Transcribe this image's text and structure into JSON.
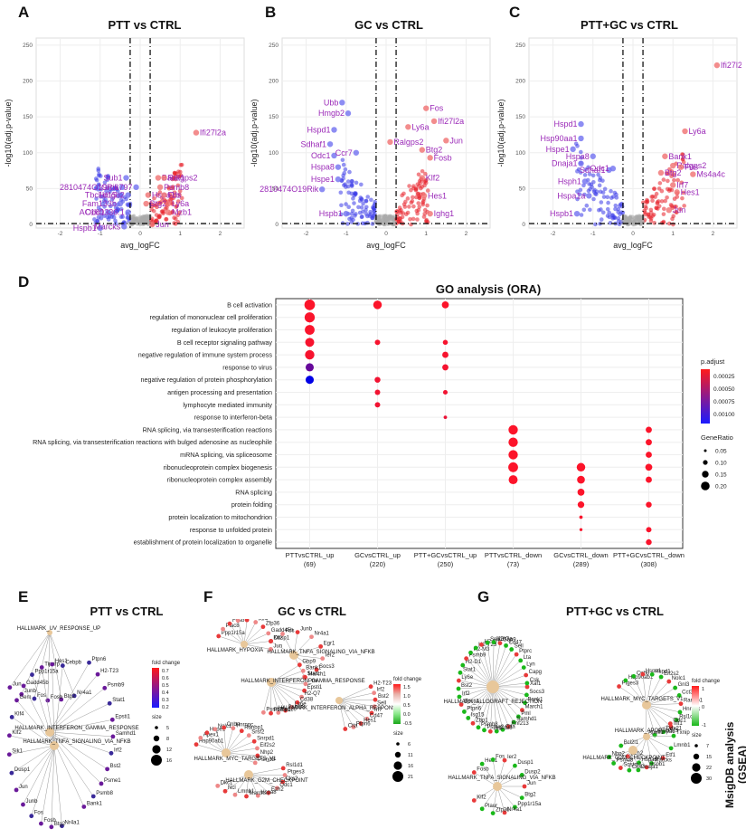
{
  "panels": {
    "A": {
      "letter": "A",
      "title": "PTT vs CTRL"
    },
    "B": {
      "letter": "B",
      "title": "GC vs CTRL"
    },
    "C": {
      "letter": "C",
      "title": "PTT+GC vs CTRL"
    },
    "D": {
      "letter": "D",
      "title": "GO analysis (ORA)"
    },
    "E": {
      "letter": "E",
      "title": "PTT vs CTRL"
    },
    "F": {
      "letter": "F",
      "title": "GC vs CTRL"
    },
    "G": {
      "letter": "G",
      "title": "PTT+GC vs CTRL"
    }
  },
  "volcano_axes": {
    "xlabel": "avg_logFC",
    "ylabel": "-log10(adj.p-value)",
    "yticks": [
      "0",
      "50",
      "100",
      "150",
      "200",
      "250"
    ],
    "xticks": [
      "-2",
      "-1",
      "0",
      "1",
      "2"
    ]
  },
  "chart_data": [
    {
      "type": "scatter",
      "id": "volcano-A",
      "title": "PTT vs CTRL",
      "xlabel": "avg_logFC",
      "ylabel": "-log10(adj.p-value)",
      "xlim": [
        -2.6,
        2.6
      ],
      "ylim": [
        -5,
        260
      ],
      "thresholds": {
        "x": [
          -0.25,
          0.25
        ],
        "y": 1.3
      },
      "labels": [
        {
          "gene": "Ifi27l2a",
          "x": 1.4,
          "y": 128,
          "dir": "up"
        },
        {
          "gene": "Sub1",
          "x": -0.35,
          "y": 65,
          "dir": "down"
        },
        {
          "gene": "Bank1",
          "x": 0.45,
          "y": 65,
          "dir": "up"
        },
        {
          "gene": "Ralgps2",
          "x": 0.6,
          "y": 65,
          "dir": "up"
        },
        {
          "gene": "2810474O19Rik",
          "x": -0.45,
          "y": 52,
          "dir": "down"
        },
        {
          "gene": "Gm6797",
          "x": -0.1,
          "y": 52,
          "dir": "down"
        },
        {
          "gene": "Psmb8",
          "x": 0.5,
          "y": 52,
          "dir": "up"
        },
        {
          "gene": "Tbc1d15",
          "x": -0.5,
          "y": 41,
          "dir": "down"
        },
        {
          "gene": "Hmgb2",
          "x": -0.3,
          "y": 41,
          "dir": "down"
        },
        {
          "gene": "Hspa1b",
          "x": 0.2,
          "y": 41,
          "dir": "up"
        },
        {
          "gene": "Fos",
          "x": 0.6,
          "y": 41,
          "dir": "up"
        },
        {
          "gene": "Fam133b",
          "x": -0.5,
          "y": 29,
          "dir": "down"
        },
        {
          "gene": "Btg2",
          "x": 0.15,
          "y": 29,
          "dir": "up"
        },
        {
          "gene": "Ly6a",
          "x": 0.7,
          "y": 29,
          "dir": "up"
        },
        {
          "gene": "Odc1",
          "x": -0.8,
          "y": 17,
          "dir": "down"
        },
        {
          "gene": "AC160336.1",
          "x": -0.3,
          "y": 17,
          "dir": "down"
        },
        {
          "gene": "Mzb1",
          "x": 0.7,
          "y": 17,
          "dir": "up"
        },
        {
          "gene": "Hspb1",
          "x": -1.0,
          "y": -5,
          "dir": "down"
        },
        {
          "gene": "Marcks",
          "x": -0.4,
          "y": -3,
          "dir": "down"
        },
        {
          "gene": "Jun",
          "x": 0.3,
          "y": 0,
          "dir": "up"
        }
      ]
    },
    {
      "type": "scatter",
      "id": "volcano-B",
      "title": "GC vs CTRL",
      "xlabel": "avg_logFC",
      "ylabel": "-log10(adj.p-value)",
      "xlim": [
        -2.6,
        2.6
      ],
      "ylim": [
        -5,
        260
      ],
      "thresholds": {
        "x": [
          -0.25,
          0.25
        ],
        "y": 1.3
      },
      "labels": [
        {
          "gene": "Fos",
          "x": 1.0,
          "y": 162,
          "dir": "up"
        },
        {
          "gene": "Ubb",
          "x": -1.1,
          "y": 170,
          "dir": "down"
        },
        {
          "gene": "Hmgb2",
          "x": -0.95,
          "y": 155,
          "dir": "down"
        },
        {
          "gene": "Ifi27l2a",
          "x": 1.2,
          "y": 144,
          "dir": "up"
        },
        {
          "gene": "Ly6a",
          "x": 0.55,
          "y": 136,
          "dir": "up"
        },
        {
          "gene": "Hspd1",
          "x": -1.3,
          "y": 132,
          "dir": "down"
        },
        {
          "gene": "Jun",
          "x": 1.5,
          "y": 117,
          "dir": "up"
        },
        {
          "gene": "Ralgps2",
          "x": 0.1,
          "y": 115,
          "dir": "up"
        },
        {
          "gene": "Sdhaf1",
          "x": -1.4,
          "y": 112,
          "dir": "down"
        },
        {
          "gene": "Btg2",
          "x": 0.9,
          "y": 104,
          "dir": "up"
        },
        {
          "gene": "Odc1",
          "x": -1.3,
          "y": 96,
          "dir": "down"
        },
        {
          "gene": "Ccr7",
          "x": -0.75,
          "y": 100,
          "dir": "down"
        },
        {
          "gene": "Fosb",
          "x": 1.1,
          "y": 93,
          "dir": "up"
        },
        {
          "gene": "Hspa8",
          "x": -1.2,
          "y": 80,
          "dir": "down"
        },
        {
          "gene": "Klf2",
          "x": 0.9,
          "y": 65,
          "dir": "up"
        },
        {
          "gene": "Hspe1",
          "x": -1.2,
          "y": 63,
          "dir": "down"
        },
        {
          "gene": "2810474O19Rik",
          "x": -1.6,
          "y": 49,
          "dir": "down"
        },
        {
          "gene": "Hes1",
          "x": 0.95,
          "y": 40,
          "dir": "up"
        },
        {
          "gene": "Ighg1",
          "x": 1.1,
          "y": 15,
          "dir": "up"
        },
        {
          "gene": "Hspb1",
          "x": -1.0,
          "y": 15,
          "dir": "down"
        }
      ]
    },
    {
      "type": "scatter",
      "id": "volcano-C",
      "title": "PTT+GC vs CTRL",
      "xlabel": "avg_logFC",
      "ylabel": "-log10(adj.p-value)",
      "xlim": [
        -2.6,
        2.6
      ],
      "ylim": [
        -5,
        260
      ],
      "thresholds": {
        "x": [
          -0.25,
          0.25
        ],
        "y": 1.3
      },
      "labels": [
        {
          "gene": "Ifi27l2a",
          "x": 2.1,
          "y": 222,
          "dir": "up"
        },
        {
          "gene": "Hspd1",
          "x": -1.3,
          "y": 140,
          "dir": "down"
        },
        {
          "gene": "Ly6a",
          "x": 1.3,
          "y": 130,
          "dir": "up"
        },
        {
          "gene": "Hsp90aa1",
          "x": -1.3,
          "y": 120,
          "dir": "down"
        },
        {
          "gene": "Hspe1",
          "x": -1.5,
          "y": 105,
          "dir": "down"
        },
        {
          "gene": "Hspa8",
          "x": -1.0,
          "y": 95,
          "dir": "down"
        },
        {
          "gene": "Bank1",
          "x": 0.8,
          "y": 95,
          "dir": "up"
        },
        {
          "gene": "Dnaja1",
          "x": -1.3,
          "y": 85,
          "dir": "down"
        },
        {
          "gene": "Ralgps2",
          "x": 1.0,
          "y": 82,
          "dir": "up"
        },
        {
          "gene": "Sdhaf1",
          "x": -0.6,
          "y": 76,
          "dir": "down"
        },
        {
          "gene": "Odc1",
          "x": -0.5,
          "y": 78,
          "dir": "down"
        },
        {
          "gene": "Fos",
          "x": 1.2,
          "y": 80,
          "dir": "up"
        },
        {
          "gene": "Btg2",
          "x": 0.7,
          "y": 72,
          "dir": "up"
        },
        {
          "gene": "Ms4a4c",
          "x": 1.5,
          "y": 70,
          "dir": "up"
        },
        {
          "gene": "Hsph1",
          "x": -1.2,
          "y": 60,
          "dir": "down"
        },
        {
          "gene": "Irf7",
          "x": 1.0,
          "y": 55,
          "dir": "up"
        },
        {
          "gene": "Hspa1a",
          "x": -1.1,
          "y": 40,
          "dir": "down"
        },
        {
          "gene": "Hes1",
          "x": 1.1,
          "y": 45,
          "dir": "up"
        },
        {
          "gene": "Jun",
          "x": 0.9,
          "y": 20,
          "dir": "up"
        },
        {
          "gene": "Hspb1",
          "x": -1.4,
          "y": 15,
          "dir": "down"
        }
      ]
    },
    {
      "type": "dotplot",
      "id": "go-ora",
      "title": "GO analysis (ORA)",
      "terms": [
        "B cell activation",
        "regulation of mononuclear cell proliferation",
        "regulation of leukocyte proliferation",
        "B cell receptor signaling pathway",
        "negative regulation of immune system process",
        "response to virus",
        "negative regulation of protein phosphorylation",
        "antigen processing and presentation",
        "lymphocyte mediated immunity",
        "response to interferon-beta",
        "RNA splicing, via transesterification reactions",
        "RNA splicing, via transesterification reactions with bulged adenosine as nucleophile",
        "mRNA splicing, via spliceosome",
        "ribonucleoprotein complex biogenesis",
        "ribonucleoprotein complex assembly",
        "RNA splicing",
        "protein folding",
        "protein localization to mitochondrion",
        "response to unfolded protein",
        "establishment of protein localization to organelle"
      ],
      "groups": [
        {
          "name": "PTTvsCTRL_up",
          "n": "(69)"
        },
        {
          "name": "GCvsCTRL_up",
          "n": "(220)"
        },
        {
          "name": "PTT+GCvsCTRL_up",
          "n": "(250)"
        },
        {
          "name": "PTTvsCTRL_down",
          "n": "(73)"
        },
        {
          "name": "GCvsCTRL_down",
          "n": "(289)"
        },
        {
          "name": "PTT+GCvsCTRL_down",
          "n": "(308)"
        }
      ],
      "points": [
        {
          "term": 0,
          "group": 0,
          "ratio": 0.22,
          "padj": 1e-05
        },
        {
          "term": 1,
          "group": 0,
          "ratio": 0.21,
          "padj": 2e-05
        },
        {
          "term": 2,
          "group": 0,
          "ratio": 0.2,
          "padj": 2e-05
        },
        {
          "term": 3,
          "group": 0,
          "ratio": 0.18,
          "padj": 3e-05
        },
        {
          "term": 4,
          "group": 0,
          "ratio": 0.19,
          "padj": 3e-05
        },
        {
          "term": 5,
          "group": 0,
          "ratio": 0.16,
          "padj": 0.0006
        },
        {
          "term": 6,
          "group": 0,
          "ratio": 0.16,
          "padj": 0.001
        },
        {
          "term": 0,
          "group": 1,
          "ratio": 0.17,
          "padj": 1e-05
        },
        {
          "term": 3,
          "group": 1,
          "ratio": 0.09,
          "padj": 3e-05
        },
        {
          "term": 6,
          "group": 1,
          "ratio": 0.1,
          "padj": 5e-05
        },
        {
          "term": 7,
          "group": 1,
          "ratio": 0.09,
          "padj": 5e-05
        },
        {
          "term": 8,
          "group": 1,
          "ratio": 0.09,
          "padj": 5e-05
        },
        {
          "term": 0,
          "group": 2,
          "ratio": 0.13,
          "padj": 1e-05
        },
        {
          "term": 3,
          "group": 2,
          "ratio": 0.08,
          "padj": 3e-05
        },
        {
          "term": 4,
          "group": 2,
          "ratio": 0.11,
          "padj": 3e-05
        },
        {
          "term": 5,
          "group": 2,
          "ratio": 0.11,
          "padj": 4e-05
        },
        {
          "term": 7,
          "group": 2,
          "ratio": 0.07,
          "padj": 5e-05
        },
        {
          "term": 9,
          "group": 2,
          "ratio": 0.04,
          "padj": 8e-05
        },
        {
          "term": 10,
          "group": 3,
          "ratio": 0.19,
          "padj": 1e-05
        },
        {
          "term": 11,
          "group": 3,
          "ratio": 0.19,
          "padj": 1e-05
        },
        {
          "term": 12,
          "group": 3,
          "ratio": 0.19,
          "padj": 1e-05
        },
        {
          "term": 13,
          "group": 3,
          "ratio": 0.2,
          "padj": 1e-05
        },
        {
          "term": 14,
          "group": 3,
          "ratio": 0.18,
          "padj": 1e-05
        },
        {
          "term": 13,
          "group": 4,
          "ratio": 0.17,
          "padj": 1e-05
        },
        {
          "term": 14,
          "group": 4,
          "ratio": 0.15,
          "padj": 1e-05
        },
        {
          "term": 15,
          "group": 4,
          "ratio": 0.13,
          "padj": 1e-05
        },
        {
          "term": 16,
          "group": 4,
          "ratio": 0.12,
          "padj": 1e-05
        },
        {
          "term": 17,
          "group": 4,
          "ratio": 0.04,
          "padj": 2e-05
        },
        {
          "term": 18,
          "group": 4,
          "ratio": 0.03,
          "padj": 2e-05
        },
        {
          "term": 10,
          "group": 5,
          "ratio": 0.11,
          "padj": 1e-05
        },
        {
          "term": 11,
          "group": 5,
          "ratio": 0.11,
          "padj": 1e-05
        },
        {
          "term": 12,
          "group": 5,
          "ratio": 0.11,
          "padj": 1e-05
        },
        {
          "term": 13,
          "group": 5,
          "ratio": 0.13,
          "padj": 1e-05
        },
        {
          "term": 14,
          "group": 5,
          "ratio": 0.11,
          "padj": 1e-05
        },
        {
          "term": 16,
          "group": 5,
          "ratio": 0.1,
          "padj": 1e-05
        },
        {
          "term": 18,
          "group": 5,
          "ratio": 0.09,
          "padj": 2e-05
        },
        {
          "term": 19,
          "group": 5,
          "ratio": 0.1,
          "padj": 2e-05
        }
      ],
      "legend": {
        "color_title": "p.adjust",
        "color_ticks": [
          "0.00025",
          "0.00050",
          "0.00075",
          "0.00100"
        ],
        "size_title": "GeneRatio",
        "size_ticks": [
          "0.05",
          "0.10",
          "0.15",
          "0.20"
        ]
      }
    }
  ],
  "networks": {
    "E": {
      "hubs": [
        "HALLMARK_UV_RESPONSE_UP",
        "HALLMARK_INTERFERON_GAMMA_RESPONSE",
        "HALLMARK_TNFA_SIGNALING_VIA_NFKB"
      ],
      "genes_left": [
        "Nr4a1",
        "Btg2",
        "Fosb",
        "Fos",
        "Junb",
        "Jun",
        "Dusp1",
        "Sik1",
        "Klf2",
        "Klf4",
        "Gem",
        "Gadd45b",
        "Ppp1r15a",
        "Tiparp",
        "Hes1",
        "Cebpb"
      ],
      "genes_right": [
        "Ptpn6",
        "H2-T23",
        "Psmb9",
        "Stat1",
        "Epsti1",
        "Samhd1",
        "Irf2",
        "Bst2",
        "Psme1",
        "Psmb8",
        "Bank1"
      ],
      "legend": {
        "color_title": "fold change",
        "color_ticks": [
          "0.7",
          "0.6",
          "0.5",
          "0.4",
          "0.3",
          "0.2"
        ],
        "size_title": "size",
        "size_ticks": [
          "5",
          "8",
          "12",
          "16"
        ]
      }
    },
    "F": {
      "hubs": [
        "HALLMARK_HYPOXIA",
        "HALLMARK_TNFA_SIGNALING_VIA_NFKB",
        "HALLMARK_INTERFERON_GAMMA_RESPONSE",
        "HALLMARK_INTERFERON_ALPHA_RESPONSE",
        "HALLMARK_MYC_TARGETS_V1",
        "HALLMARK_G2M_CHECKPOINT"
      ],
      "genes_top": [
        "Ppp1r15a",
        "Plac8",
        "Fosb",
        "Btg2",
        "Dusp2",
        "Klf4",
        "Zfp36",
        "Gadd45b",
        "Dusp1",
        "Jun",
        "Klf2",
        "Fos",
        "Junb",
        "Nr4a1",
        "Egr1",
        "Ier2",
        "Socs3",
        "Stat1",
        "Gbp9",
        "Bank1",
        "March1",
        "Pml",
        "Epsti1",
        "H2-Q7",
        "Cd38",
        "Ly6e",
        "Psmb8",
        "Sp110",
        "Psme1",
        "Psmb9",
        "H2-T23",
        "Irf2",
        "Bst2",
        "Sell",
        "Irf7",
        "Cd47",
        "Hes1",
        "Ptpn6",
        "Cita"
      ],
      "genes_bottom": [
        "Hsp90ab1",
        "Apex1",
        "Hspe1",
        "Nolc1",
        "Cnbp",
        "Hnrnpc",
        "Ranbp1",
        "Srsf2",
        "Snrpd1",
        "Eif2s2",
        "Nhp2",
        "Psmd8",
        "Rsl1d1",
        "Ptges3",
        "Cks2",
        "Odc1",
        "Ezh2",
        "Hspa8",
        "Marcks",
        "Lmnb1",
        "Ncl",
        "Dkc1"
      ],
      "legend": {
        "color_title": "fold change",
        "color_ticks": [
          "1.5",
          "1.0",
          "0.5",
          "0.0",
          "-0.5"
        ],
        "size_title": "size",
        "size_ticks": [
          "6",
          "11",
          "16",
          "21"
        ]
      }
    },
    "G": {
      "hubs": [
        "HALLMARK_ALLOGRAFT_REJECTION",
        "HALLMARK_MYC_TARGETS_V1",
        "HALLMARK_APOPTOSIS",
        "HALLMARK_G2M_CHECKPOINT",
        "HALLMARK_TNFA_SIGNALING_VIA_NFKB"
      ],
      "genes_allograft": [
        "Xaf1",
        "Socs3",
        "Bank1",
        "March1",
        "Pml",
        "Samhd1",
        "Rnf213",
        "Cita",
        "Cd38",
        "Ifit3",
        "Psme2",
        "Psmb8",
        "Zbp1",
        "Isg15",
        "Ptpn6",
        "Epsti1",
        "Irf2",
        "Bst2",
        "Ly6e",
        "Stat1",
        "H2-D1",
        "Psmb9",
        "H2-M3",
        "H2-T23",
        "H2-Q7",
        "Sp110",
        "H2-Oa",
        "Gbp9",
        "Cd47",
        "Sell",
        "Ptprc",
        "Lta",
        "Lyn",
        "Capg",
        "Csk"
      ],
      "genes_myc": [
        "Ptges3",
        "Hsp90ab1",
        "Cnbp",
        "Hspe1",
        "Hspd1",
        "Eif2s2",
        "Nolc1",
        "Gnl3",
        "Cct3",
        "Ranbp1",
        "Hnrnpc",
        "Rsl1d1",
        "Ifit1",
        "Ddx21",
        "Snrpd1",
        "Apex1",
        "Odc1",
        "Txnip",
        "Lmnb1",
        "Etf1",
        "Marcks",
        "Hspa8",
        "Ezh2",
        "Bcl2l1",
        "Hspb1",
        "Dnaja1",
        "Cks2",
        "Sqstm1",
        "Psmd8",
        "Nhp2"
      ],
      "genes_tnfa": [
        "Fosb",
        "Hes1",
        "Fos",
        "Ier2",
        "Dusp1",
        "Dusp2",
        "Jun",
        "Btg2",
        "Ppp1r15a",
        "Nr4a1",
        "Zfp36",
        "Plaur",
        "Klf2"
      ],
      "legend": {
        "color_title": "fold change",
        "color_ticks": [
          "1",
          "0",
          "-1"
        ],
        "size_title": "size",
        "size_ticks": [
          "7",
          "15",
          "22",
          "30"
        ]
      }
    }
  },
  "side_label": "MsigDB analysis (GSEA)"
}
